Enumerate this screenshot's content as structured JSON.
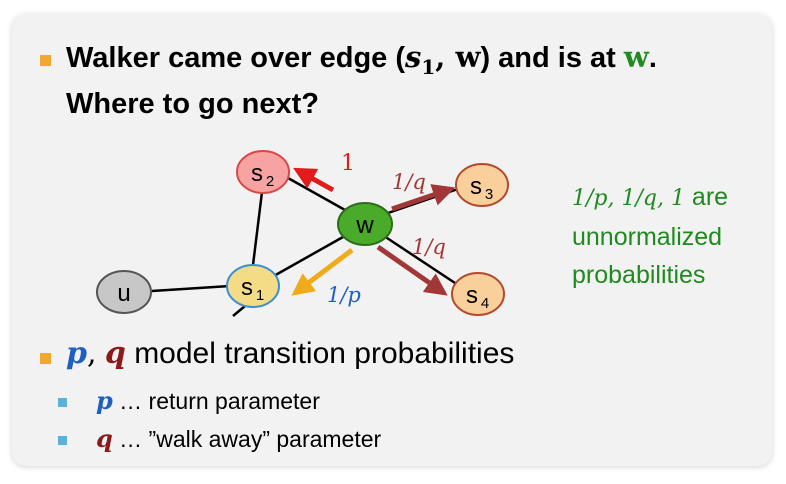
{
  "heading": {
    "line1_pre": "Walker came over edge (",
    "line1_s": "s",
    "line1_sub": "1",
    "line1_mid": ", ",
    "line1_w": "w",
    "line1_close": ")",
    "line1_post": " and is at ",
    "line1_w2": "w",
    "line1_dot": ".",
    "line2": "Where to go next?"
  },
  "graph": {
    "nodes": {
      "s2": {
        "label": "s",
        "sub": "2"
      },
      "s3": {
        "label": "s",
        "sub": "3"
      },
      "s4": {
        "label": "s",
        "sub": "4"
      },
      "s1": {
        "label": "s",
        "sub": "1"
      },
      "w": {
        "label": "w"
      },
      "u": {
        "label": "u"
      }
    },
    "edge_labels": {
      "to_s2": "1",
      "to_s3": "1/q",
      "to_s4": "1/q",
      "to_s1": "1/p"
    },
    "colors": {
      "s2_fill": "#f7a3a3",
      "s2_stroke": "#d94848",
      "s3_fill": "#f9cf9c",
      "s1_fill": "#f4dc86",
      "s1_stroke": "#3a8fd4",
      "w_fill": "#4aaa2a",
      "u_fill": "#c7c7c7",
      "arrow_red": "#e21b1b",
      "arrow_darkred": "#a33636",
      "arrow_orange": "#efab1a"
    }
  },
  "side_note": {
    "math": "1/p, 1/q, 1",
    "line1_rest": " are",
    "line2": "unnormalized",
    "line3": "probabilities"
  },
  "bullets": {
    "main": {
      "p": "p",
      "comma": ",",
      "q": "q",
      "text": " model transition probabilities"
    },
    "sub": [
      {
        "var": "p",
        "text": " … return parameter"
      },
      {
        "var": "q",
        "text": " … ”walk away” parameter"
      }
    ]
  }
}
